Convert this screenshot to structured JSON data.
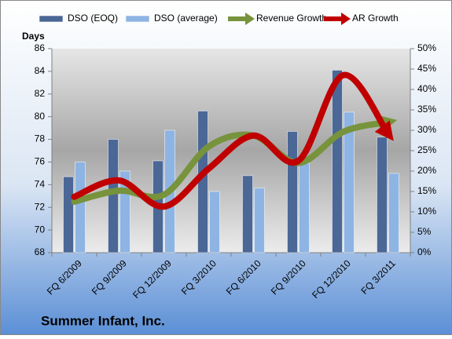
{
  "chart_data": {
    "type": "bar",
    "title": "Summer Infant, Inc.",
    "y_label": "Days",
    "categories": [
      "FQ 6/2009",
      "FQ 9/2009",
      "FQ 12/2009",
      "FQ 3/2010",
      "FQ 6/2010",
      "FQ 9/2010",
      "FQ 12/2010",
      "FQ 3/2011"
    ],
    "series": [
      {
        "name": "DSO (EOQ)",
        "type": "bar",
        "color": "#4a6796",
        "values": [
          74.7,
          78.0,
          76.1,
          80.5,
          74.8,
          78.7,
          84.1,
          78.2
        ]
      },
      {
        "name": "DSO (average)",
        "type": "bar",
        "color": "#8eb4e3",
        "values": [
          76.0,
          75.2,
          78.8,
          73.4,
          73.7,
          75.9,
          80.4,
          75.0
        ]
      },
      {
        "name": "Revenue Growth",
        "type": "line",
        "axis": "y2",
        "color": "#77933c",
        "values": [
          12.5,
          15.2,
          14.2,
          26.0,
          28.7,
          22.0,
          29.6,
          32.0
        ]
      },
      {
        "name": "AR Growth",
        "type": "line",
        "axis": "y2",
        "color": "#c00000",
        "values": [
          13.7,
          17.7,
          11.3,
          20.6,
          28.7,
          22.5,
          43.5,
          29.2
        ]
      }
    ],
    "ylim": [
      68,
      86
    ],
    "yticks": [
      68,
      70,
      72,
      74,
      76,
      78,
      80,
      82,
      84,
      86
    ],
    "y2lim": [
      0,
      50
    ],
    "y2ticks": [
      {
        "value": 0,
        "label": "0%"
      },
      {
        "value": 5,
        "label": "5%"
      },
      {
        "value": 10,
        "label": "10%"
      },
      {
        "value": 15,
        "label": "15%"
      },
      {
        "value": 20,
        "label": "20%"
      },
      {
        "value": 25,
        "label": "25%"
      },
      {
        "value": 30,
        "label": "30%"
      },
      {
        "value": 35,
        "label": "35%"
      },
      {
        "value": 40,
        "label": "40%"
      },
      {
        "value": 45,
        "label": "45%"
      },
      {
        "value": 50,
        "label": "50%"
      }
    ],
    "grid": false,
    "legend": "top"
  }
}
